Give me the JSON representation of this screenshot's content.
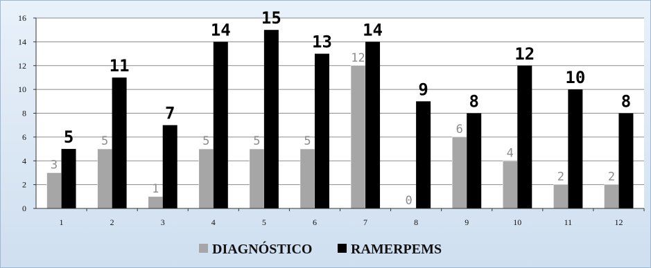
{
  "chart_data": {
    "type": "bar",
    "title": "",
    "xlabel": "",
    "ylabel": "",
    "ylim": [
      0,
      16
    ],
    "yticks": [
      "0",
      "2",
      "4",
      "6",
      "8",
      "10",
      "12",
      "14",
      "16"
    ],
    "categories": [
      "1",
      "2",
      "3",
      "4",
      "5",
      "6",
      "7",
      "8",
      "9",
      "10",
      "11",
      "12"
    ],
    "grid": true,
    "legend_position": "bottom",
    "series": [
      {
        "name": "DIAGNÓSTICO",
        "color": "#a6a6a6",
        "values": [
          3,
          5,
          1,
          5,
          5,
          5,
          12,
          0,
          6,
          4,
          2,
          2
        ],
        "labels": [
          "3",
          "5",
          "1",
          "5",
          "5",
          "5",
          "12",
          "0",
          "6",
          "4",
          "2",
          "2"
        ]
      },
      {
        "name": "RAMERPEMS",
        "color": "#000000",
        "values": [
          5,
          11,
          7,
          14,
          15,
          13,
          14,
          9,
          8,
          12,
          10,
          8
        ],
        "labels": [
          "5",
          "11",
          "7",
          "14",
          "15",
          "13",
          "14",
          "9",
          "8",
          "12",
          "10",
          "8"
        ]
      }
    ]
  }
}
